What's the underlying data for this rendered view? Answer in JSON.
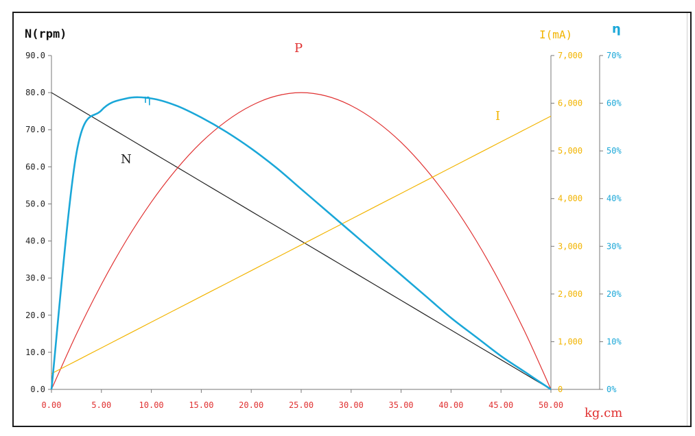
{
  "chart_data": {
    "type": "line",
    "x": [
      0,
      2.5,
      5,
      7.5,
      10,
      12.5,
      15,
      17.5,
      20,
      22.5,
      25,
      27.5,
      30,
      32.5,
      35,
      37.5,
      40,
      42.5,
      45,
      47.5,
      50
    ],
    "xlabel": "kg.cm",
    "xlim": [
      0,
      50
    ],
    "x_ticks": [
      "0.00",
      "5.00",
      "10.00",
      "15.00",
      "20.00",
      "25.00",
      "30.00",
      "35.00",
      "40.00",
      "45.00",
      "50.00"
    ],
    "axes": {
      "left": {
        "label": "N(rpm)",
        "ylim": [
          0,
          90
        ],
        "ticks": [
          "0.0",
          "10.0",
          "20.0",
          "30.0",
          "40.0",
          "50.0",
          "60.0",
          "70.0",
          "80.0",
          "90.0"
        ],
        "color": "#222222"
      },
      "right1": {
        "label": "I(mA)",
        "ylim": [
          0,
          7000
        ],
        "ticks": [
          "0",
          "1,000",
          "2,000",
          "3,000",
          "4,000",
          "5,000",
          "6,000",
          "7,000"
        ],
        "color": "#f2b400"
      },
      "right2": {
        "label": "η",
        "ylim": [
          0,
          70
        ],
        "ticks": [
          "0%",
          "10%",
          "20%",
          "30%",
          "40%",
          "50%",
          "60%",
          "70%"
        ],
        "color": "#1aa7d8"
      }
    },
    "series": [
      {
        "name": "N",
        "axis": "left",
        "color": "#222222",
        "values": [
          80,
          76,
          72,
          68,
          64,
          60,
          56,
          52,
          48,
          44,
          40,
          36,
          32,
          28,
          24,
          20,
          16,
          12,
          8,
          4,
          0
        ]
      },
      {
        "name": "P",
        "axis": "left",
        "color": "#e03030",
        "values": [
          0,
          14.9,
          28.3,
          40.2,
          50.5,
          59.3,
          66.6,
          72.3,
          76.5,
          79.1,
          80.0,
          79.1,
          76.5,
          72.3,
          66.6,
          59.3,
          50.5,
          40.2,
          28.3,
          14.9,
          0
        ]
      },
      {
        "name": "I",
        "axis": "right1",
        "color": "#f2b400",
        "values": [
          330,
          600,
          870,
          1140,
          1410,
          1680,
          1950,
          2220,
          2490,
          2760,
          3030,
          3300,
          3570,
          3840,
          4110,
          4380,
          4650,
          4920,
          5190,
          5460,
          5730
        ]
      },
      {
        "name": "η",
        "axis": "right2",
        "color": "#1aa7d8",
        "values": [
          0,
          49.5,
          58.5,
          61.0,
          61.0,
          59.5,
          57.0,
          54.0,
          50.5,
          46.5,
          42.0,
          37.5,
          33.0,
          28.5,
          24.0,
          19.5,
          15.0,
          11.0,
          7.0,
          3.5,
          0
        ]
      }
    ],
    "grid": false,
    "legend": "inline labels"
  }
}
